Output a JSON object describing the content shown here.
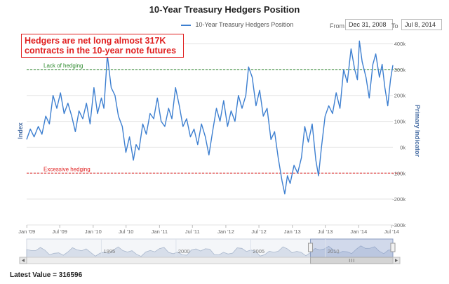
{
  "chart_data": {
    "type": "line",
    "title": "10-Year Treasury Hedgers Position",
    "series": [
      {
        "name": "10-Year Treasury Hedgers Position",
        "color": "#3d7fd0",
        "points": [
          [
            "2008-12-31",
            30000
          ],
          [
            "2009-01-20",
            70000
          ],
          [
            "2009-02-10",
            40000
          ],
          [
            "2009-03-05",
            80000
          ],
          [
            "2009-03-25",
            50000
          ],
          [
            "2009-04-15",
            120000
          ],
          [
            "2009-05-05",
            90000
          ],
          [
            "2009-05-25",
            200000
          ],
          [
            "2009-06-15",
            150000
          ],
          [
            "2009-07-05",
            210000
          ],
          [
            "2009-07-25",
            130000
          ],
          [
            "2009-08-15",
            170000
          ],
          [
            "2009-09-05",
            120000
          ],
          [
            "2009-09-25",
            60000
          ],
          [
            "2009-10-15",
            140000
          ],
          [
            "2009-11-05",
            110000
          ],
          [
            "2009-11-25",
            170000
          ],
          [
            "2009-12-15",
            90000
          ],
          [
            "2010-01-05",
            230000
          ],
          [
            "2010-01-25",
            130000
          ],
          [
            "2010-02-15",
            190000
          ],
          [
            "2010-03-01",
            150000
          ],
          [
            "2010-03-20",
            355000
          ],
          [
            "2010-04-10",
            230000
          ],
          [
            "2010-05-01",
            200000
          ],
          [
            "2010-05-20",
            120000
          ],
          [
            "2010-06-10",
            80000
          ],
          [
            "2010-06-30",
            -20000
          ],
          [
            "2010-07-20",
            40000
          ],
          [
            "2010-08-10",
            -50000
          ],
          [
            "2010-08-25",
            10000
          ],
          [
            "2010-09-10",
            -10000
          ],
          [
            "2010-10-01",
            90000
          ],
          [
            "2010-10-20",
            50000
          ],
          [
            "2010-11-10",
            130000
          ],
          [
            "2010-11-30",
            110000
          ],
          [
            "2010-12-20",
            190000
          ],
          [
            "2011-01-10",
            100000
          ],
          [
            "2011-01-30",
            80000
          ],
          [
            "2011-02-20",
            150000
          ],
          [
            "2011-03-10",
            110000
          ],
          [
            "2011-03-30",
            230000
          ],
          [
            "2011-04-20",
            160000
          ],
          [
            "2011-05-10",
            80000
          ],
          [
            "2011-05-30",
            110000
          ],
          [
            "2011-06-20",
            40000
          ],
          [
            "2011-07-10",
            70000
          ],
          [
            "2011-07-30",
            10000
          ],
          [
            "2011-08-20",
            90000
          ],
          [
            "2011-09-10",
            40000
          ],
          [
            "2011-09-30",
            -30000
          ],
          [
            "2011-10-20",
            60000
          ],
          [
            "2011-11-10",
            150000
          ],
          [
            "2011-11-30",
            100000
          ],
          [
            "2011-12-20",
            180000
          ],
          [
            "2012-01-10",
            80000
          ],
          [
            "2012-01-30",
            140000
          ],
          [
            "2012-02-20",
            100000
          ],
          [
            "2012-03-10",
            200000
          ],
          [
            "2012-03-30",
            150000
          ],
          [
            "2012-04-20",
            200000
          ],
          [
            "2012-05-05",
            310000
          ],
          [
            "2012-05-25",
            270000
          ],
          [
            "2012-06-15",
            160000
          ],
          [
            "2012-07-05",
            220000
          ],
          [
            "2012-07-25",
            120000
          ],
          [
            "2012-08-15",
            150000
          ],
          [
            "2012-09-05",
            30000
          ],
          [
            "2012-09-25",
            60000
          ],
          [
            "2012-10-15",
            -40000
          ],
          [
            "2012-11-05",
            -130000
          ],
          [
            "2012-11-20",
            -180000
          ],
          [
            "2012-12-05",
            -110000
          ],
          [
            "2012-12-20",
            -140000
          ],
          [
            "2013-01-10",
            -70000
          ],
          [
            "2013-01-30",
            -100000
          ],
          [
            "2013-02-20",
            -40000
          ],
          [
            "2013-03-10",
            80000
          ],
          [
            "2013-03-30",
            20000
          ],
          [
            "2013-04-20",
            90000
          ],
          [
            "2013-05-10",
            -50000
          ],
          [
            "2013-05-25",
            -110000
          ],
          [
            "2013-06-10",
            0
          ],
          [
            "2013-06-30",
            120000
          ],
          [
            "2013-07-20",
            160000
          ],
          [
            "2013-08-10",
            130000
          ],
          [
            "2013-08-30",
            210000
          ],
          [
            "2013-09-20",
            150000
          ],
          [
            "2013-10-10",
            300000
          ],
          [
            "2013-10-30",
            250000
          ],
          [
            "2013-11-20",
            380000
          ],
          [
            "2013-12-10",
            300000
          ],
          [
            "2013-12-25",
            260000
          ],
          [
            "2014-01-05",
            410000
          ],
          [
            "2014-01-20",
            330000
          ],
          [
            "2014-02-10",
            270000
          ],
          [
            "2014-02-28",
            190000
          ],
          [
            "2014-03-20",
            320000
          ],
          [
            "2014-04-05",
            360000
          ],
          [
            "2014-04-25",
            270000
          ],
          [
            "2014-05-10",
            320000
          ],
          [
            "2014-05-25",
            230000
          ],
          [
            "2014-06-10",
            160000
          ],
          [
            "2014-06-25",
            260000
          ],
          [
            "2014-07-08",
            316596
          ]
        ]
      }
    ],
    "x_tick_labels": [
      "Jan '09",
      "Jul '09",
      "Jan '10",
      "Jul '10",
      "Jan '11",
      "Jul '11",
      "Jan '12",
      "Jul '12",
      "Jan '13",
      "Jul '13",
      "Jan '14",
      "Jul '14"
    ],
    "x_ticks": [
      "2009-01-01",
      "2009-07-01",
      "2010-01-01",
      "2010-07-01",
      "2011-01-01",
      "2011-07-01",
      "2012-01-01",
      "2012-07-01",
      "2013-01-01",
      "2013-07-01",
      "2014-01-01",
      "2014-07-01"
    ],
    "xlim": [
      "2008-12-31",
      "2014-07-08"
    ],
    "ylabel": "Index",
    "ylabel_right": "Primary Indicator",
    "y_ticks": [
      -300000,
      -200000,
      -100000,
      0,
      100000,
      200000,
      300000,
      400000
    ],
    "y_tick_labels": [
      "-300k",
      "-200k",
      "-100k",
      "0k",
      "100k",
      "200k",
      "300k",
      "400k"
    ],
    "ylim": [
      -300000,
      400000
    ],
    "grid": true,
    "reference_lines": [
      {
        "label": "Lack of hedging",
        "value": 300000,
        "color": "#2e8b2e"
      },
      {
        "label": "Excessive hedging",
        "value": -100000,
        "color": "#e02020"
      }
    ],
    "navigator": {
      "tick_labels": [
        "1995",
        "2000",
        "2005",
        "2010"
      ],
      "ticks": [
        "1995-01-01",
        "2000-01-01",
        "2005-01-01",
        "2010-01-01"
      ],
      "range": [
        "1990-01-01",
        "2014-07-08"
      ],
      "selected": [
        "2008-12-31",
        "2014-07-08"
      ]
    }
  },
  "range_selector": {
    "from_label": "From",
    "from_value": "Dec 31, 2008",
    "to_label": "To",
    "to_value": "Jul 8, 2014"
  },
  "annotation": {
    "line1": "Hedgers are net long almost 317K",
    "line2": "contracts in the 10-year note futures"
  },
  "latest": {
    "label": "Latest Value = ",
    "value": "316596"
  }
}
